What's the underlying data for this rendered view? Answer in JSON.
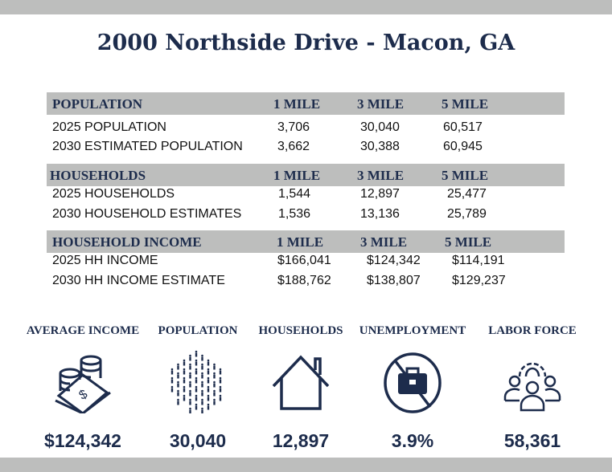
{
  "title": "2000 Northside Drive - Macon, GA",
  "sections": [
    {
      "header": "POPULATION",
      "columns": [
        "1 MILE",
        "3 MILE",
        "5 MILE"
      ],
      "rows": [
        {
          "label": "2025 POPULATION",
          "values": [
            "3,706",
            "30,040",
            "60,517"
          ]
        },
        {
          "label": "2030 ESTIMATED POPULATION",
          "values": [
            "3,662",
            "30,388",
            "60,945"
          ]
        }
      ]
    },
    {
      "header": "HOUSEHOLDS",
      "columns": [
        "1 MILE",
        "3 MILE",
        "5 MILE"
      ],
      "rows": [
        {
          "label": "2025 HOUSEHOLDS",
          "values": [
            "1,544",
            "12,897",
            "25,477"
          ]
        },
        {
          "label": "2030 HOUSEHOLD ESTIMATES",
          "values": [
            "1,536",
            "13,136",
            "25,789"
          ]
        }
      ]
    },
    {
      "header": "HOUSEHOLD INCOME",
      "columns": [
        "1 MILE",
        "3 MILE",
        "5 MILE"
      ],
      "rows": [
        {
          "label": "2025 HH INCOME",
          "values": [
            "$166,041",
            "$124,342",
            "$114,191"
          ]
        },
        {
          "label": "2030 HH INCOME ESTIMATE",
          "values": [
            "$188,762",
            "$138,807",
            "$129,237"
          ]
        }
      ]
    }
  ],
  "stats": [
    {
      "label": "AVERAGE INCOME",
      "value": "$124,342",
      "icon": "money-coins-icon"
    },
    {
      "label": "POPULATION",
      "value": "30,040",
      "icon": "people-crowd-icon"
    },
    {
      "label": "HOUSEHOLDS",
      "value": "12,897",
      "icon": "house-icon"
    },
    {
      "label": "UNEMPLOYMENT",
      "value": "3.9%",
      "icon": "no-briefcase-icon"
    },
    {
      "label": "LABOR FORCE",
      "value": "58,361",
      "icon": "team-gear-icon"
    }
  ],
  "colors": {
    "navy": "#1d2c4c",
    "band": "#bdbebd"
  }
}
